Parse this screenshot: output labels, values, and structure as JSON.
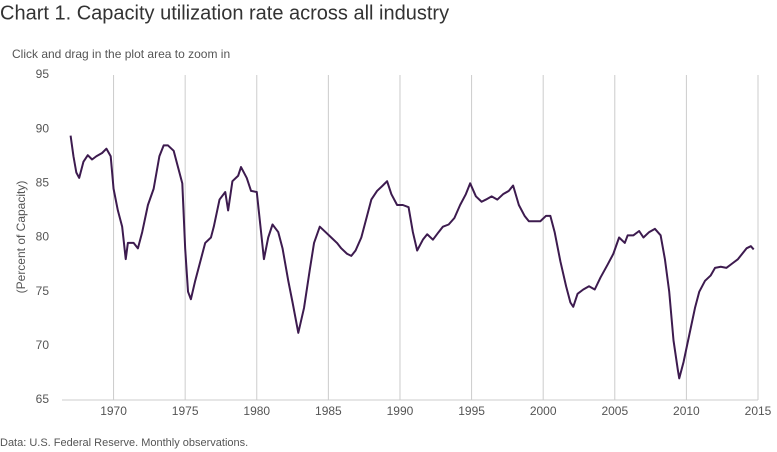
{
  "chart_data": {
    "type": "line",
    "title": "Chart 1. Capacity utilization rate across all industry",
    "subtitle": "Click and drag in the plot area to zoom in",
    "y_label": "(Percent of Capacity)",
    "note": "Data: U.S. Federal Reserve. Monthly observations.",
    "color": "#3d1b4f",
    "grid": true,
    "xlim": [
      1966.4,
      2015
    ],
    "ylim": [
      65,
      95
    ],
    "xticks": [
      1970,
      1975,
      1980,
      1985,
      1990,
      1995,
      2000,
      2005,
      2010,
      2015
    ],
    "yticks": [
      65,
      70,
      75,
      80,
      85,
      90,
      95
    ],
    "x": [
      1967.0,
      1967.2,
      1967.4,
      1967.6,
      1967.9,
      1968.2,
      1968.5,
      1968.8,
      1969.2,
      1969.5,
      1969.8,
      1970.0,
      1970.3,
      1970.6,
      1970.85,
      1971.0,
      1971.4,
      1971.7,
      1972.0,
      1972.4,
      1972.8,
      1973.2,
      1973.5,
      1973.8,
      1974.2,
      1974.5,
      1974.8,
      1975.0,
      1975.2,
      1975.4,
      1975.7,
      1976.0,
      1976.4,
      1976.8,
      1977.0,
      1977.4,
      1977.8,
      1978.0,
      1978.3,
      1978.7,
      1978.9,
      1979.3,
      1979.6,
      1980.0,
      1980.3,
      1980.5,
      1980.8,
      1981.1,
      1981.5,
      1981.8,
      1982.2,
      1982.5,
      1982.9,
      1983.3,
      1983.7,
      1984.0,
      1984.4,
      1984.8,
      1985.2,
      1985.6,
      1985.9,
      1986.3,
      1986.6,
      1986.9,
      1987.3,
      1987.7,
      1988.0,
      1988.4,
      1988.8,
      1989.1,
      1989.4,
      1989.8,
      1990.2,
      1990.6,
      1990.9,
      1991.2,
      1991.6,
      1991.9,
      1992.3,
      1992.7,
      1993.0,
      1993.4,
      1993.8,
      1994.2,
      1994.6,
      1994.9,
      1995.3,
      1995.7,
      1996.0,
      1996.4,
      1996.8,
      1997.2,
      1997.6,
      1997.9,
      1998.3,
      1998.7,
      1999.0,
      1999.4,
      1999.8,
      2000.2,
      2000.5,
      2000.8,
      2001.2,
      2001.6,
      2001.9,
      2002.1,
      2002.4,
      2002.8,
      2003.2,
      2003.6,
      2004.0,
      2004.5,
      2004.9,
      2005.3,
      2005.7,
      2005.9,
      2006.3,
      2006.7,
      2007.0,
      2007.4,
      2007.8,
      2008.2,
      2008.5,
      2008.8,
      2009.1,
      2009.4,
      2009.5,
      2009.8,
      2010.2,
      2010.6,
      2010.9,
      2011.3,
      2011.7,
      2012.0,
      2012.4,
      2012.8,
      2013.2,
      2013.6,
      2013.9,
      2014.2,
      2014.5,
      2014.7
    ],
    "values": [
      89.4,
      87.5,
      86.0,
      85.5,
      87.0,
      87.6,
      87.2,
      87.5,
      87.8,
      88.2,
      87.5,
      84.5,
      82.5,
      81.0,
      78.0,
      79.5,
      79.5,
      79.0,
      80.5,
      83.0,
      84.5,
      87.5,
      88.5,
      88.5,
      88.0,
      86.5,
      85.0,
      79.0,
      75.0,
      74.3,
      76.0,
      77.5,
      79.5,
      80.0,
      81.0,
      83.5,
      84.2,
      82.5,
      85.2,
      85.7,
      86.5,
      85.5,
      84.3,
      84.2,
      80.5,
      78.0,
      80.0,
      81.2,
      80.5,
      79.0,
      76.0,
      74.0,
      71.2,
      73.5,
      77.0,
      79.5,
      81.0,
      80.5,
      80.0,
      79.5,
      79.0,
      78.5,
      78.3,
      78.8,
      80.0,
      82.0,
      83.5,
      84.3,
      84.8,
      85.2,
      84.0,
      83.0,
      83.0,
      82.8,
      80.5,
      78.8,
      79.8,
      80.3,
      79.8,
      80.5,
      81.0,
      81.2,
      81.8,
      83.0,
      84.0,
      85.0,
      83.8,
      83.3,
      83.5,
      83.8,
      83.5,
      84.0,
      84.3,
      84.8,
      83.0,
      82.0,
      81.5,
      81.5,
      81.5,
      82.0,
      82.0,
      80.5,
      77.8,
      75.5,
      74.0,
      73.6,
      74.8,
      75.2,
      75.5,
      75.2,
      76.3,
      77.5,
      78.5,
      80.0,
      79.5,
      80.2,
      80.2,
      80.6,
      80.0,
      80.5,
      80.8,
      80.2,
      78.0,
      75.0,
      70.5,
      67.8,
      67.0,
      68.5,
      71.0,
      73.5,
      75.0,
      76.0,
      76.5,
      77.2,
      77.3,
      77.2,
      77.6,
      78.0,
      78.5,
      79.0,
      79.2,
      78.9
    ]
  }
}
